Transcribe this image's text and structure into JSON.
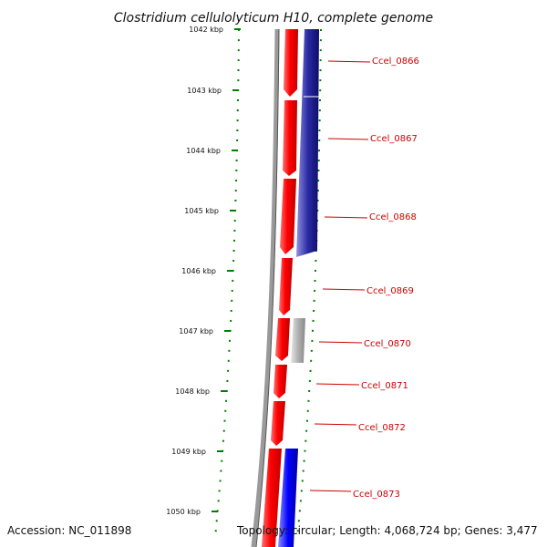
{
  "title": "Clostridium cellulolyticum H10, complete genome",
  "footer": {
    "accession": "Accession: NC_011898",
    "summary": "Topology: circular; Length: 4,068,724 bp; Genes: 3,477"
  },
  "ticks": [
    "1042 kbp",
    "1043 kbp",
    "1044 kbp",
    "1045 kbp",
    "1046 kbp",
    "1047 kbp",
    "1048 kbp",
    "1049 kbp",
    "1050 kbp"
  ],
  "genes": [
    "Ccel_0866",
    "Ccel_0867",
    "Ccel_0868",
    "Ccel_0869",
    "Ccel_0870",
    "Ccel_0871",
    "Ccel_0872",
    "Ccel_0873"
  ],
  "colors": {
    "forward_cds": "#ff0000",
    "reverse_cds": "#000080",
    "reverse_cds_light": "#0000ff",
    "pseudo": "#b0b0b0",
    "tick": "#008000",
    "label": "#cc0000",
    "backbone": "#808080"
  }
}
